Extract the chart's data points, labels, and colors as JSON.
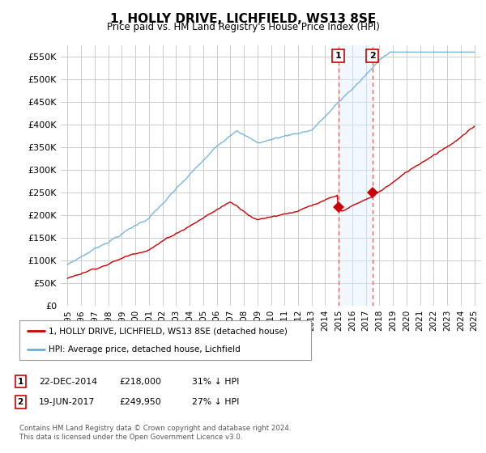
{
  "title": "1, HOLLY DRIVE, LICHFIELD, WS13 8SE",
  "subtitle": "Price paid vs. HM Land Registry's House Price Index (HPI)",
  "ylim": [
    0,
    575000
  ],
  "yticks": [
    0,
    50000,
    100000,
    150000,
    200000,
    250000,
    300000,
    350000,
    400000,
    450000,
    500000,
    550000
  ],
  "ytick_labels": [
    "£0",
    "£50K",
    "£100K",
    "£150K",
    "£200K",
    "£250K",
    "£300K",
    "£350K",
    "£400K",
    "£450K",
    "£500K",
    "£550K"
  ],
  "hpi_color": "#6baed6",
  "price_color": "#cc0000",
  "marker1_date": 2014.97,
  "marker1_price": 218000,
  "marker2_date": 2017.47,
  "marker2_price": 249950,
  "legend_label1": "1, HOLLY DRIVE, LICHFIELD, WS13 8SE (detached house)",
  "legend_label2": "HPI: Average price, detached house, Lichfield",
  "table_row1": [
    "1",
    "22-DEC-2014",
    "£218,000",
    "31% ↓ HPI"
  ],
  "table_row2": [
    "2",
    "19-JUN-2017",
    "£249,950",
    "27% ↓ HPI"
  ],
  "footer": "Contains HM Land Registry data © Crown copyright and database right 2024.\nThis data is licensed under the Open Government Licence v3.0.",
  "bg_color": "#ffffff",
  "grid_color": "#cccccc",
  "shade_color": "#ddeeff"
}
